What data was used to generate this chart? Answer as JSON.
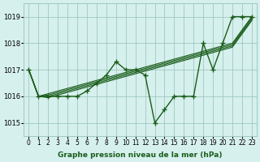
{
  "hours": [
    0,
    1,
    2,
    3,
    4,
    5,
    6,
    7,
    8,
    9,
    10,
    11,
    12,
    13,
    14,
    15,
    16,
    17,
    18,
    19,
    20,
    21,
    22,
    23
  ],
  "line_main": [
    1017.0,
    1016.0,
    1016.0,
    1016.0,
    1016.0,
    1016.0,
    1016.2,
    1016.5,
    1016.8,
    1017.3,
    1017.0,
    1017.0,
    1016.8,
    1015.0,
    1015.5,
    1016.0,
    1016.0,
    1016.0,
    1018.0,
    1017.0,
    1018.0,
    1019.0,
    1019.0,
    1019.0
  ],
  "line_upper1": [
    1017.0,
    1016.0,
    1016.1,
    1016.2,
    1016.3,
    1016.4,
    1016.5,
    1016.6,
    1016.7,
    1016.8,
    1016.9,
    1017.0,
    1017.1,
    1017.2,
    1017.3,
    1017.4,
    1017.5,
    1017.6,
    1017.7,
    1017.8,
    1017.9,
    1018.0,
    1018.5,
    1019.0
  ],
  "line_upper2": [
    1017.0,
    1016.0,
    1016.05,
    1016.15,
    1016.25,
    1016.35,
    1016.45,
    1016.55,
    1016.65,
    1016.75,
    1016.85,
    1016.95,
    1017.05,
    1017.15,
    1017.25,
    1017.35,
    1017.45,
    1017.55,
    1017.65,
    1017.75,
    1017.85,
    1017.95,
    1018.45,
    1018.95
  ],
  "line_upper3": [
    1017.0,
    1016.0,
    1016.0,
    1016.1,
    1016.2,
    1016.3,
    1016.4,
    1016.5,
    1016.6,
    1016.7,
    1016.8,
    1016.9,
    1017.0,
    1017.1,
    1017.2,
    1017.3,
    1017.4,
    1017.5,
    1017.6,
    1017.7,
    1017.8,
    1017.9,
    1018.4,
    1018.9
  ],
  "line_upper4": [
    1017.0,
    1016.0,
    1015.95,
    1016.05,
    1016.15,
    1016.25,
    1016.35,
    1016.45,
    1016.55,
    1016.65,
    1016.75,
    1016.85,
    1016.95,
    1017.05,
    1017.15,
    1017.25,
    1017.35,
    1017.45,
    1017.55,
    1017.65,
    1017.75,
    1017.85,
    1018.35,
    1018.85
  ],
  "bg_color": "#d6f0ed",
  "line_color": "#1a5c1a",
  "grid_color": "#a0c8c0",
  "xlabel": "Graphe pression niveau de la mer (hPa)",
  "ylim": [
    1014.5,
    1019.5
  ],
  "yticks": [
    1015,
    1016,
    1017,
    1018,
    1019
  ],
  "marker": "+",
  "marker_size": 4,
  "line_width": 1.0
}
